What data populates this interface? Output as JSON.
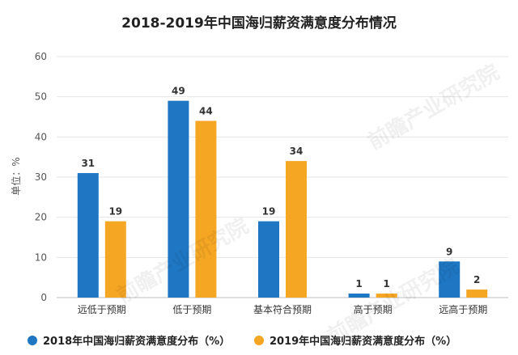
{
  "chart_data": {
    "type": "bar",
    "title": "2018-2019年中国海归薪资满意度分布情况",
    "ylabel": "单位：%",
    "xlabel": "",
    "ylim": [
      0,
      60
    ],
    "yticks": [
      0,
      10,
      20,
      30,
      40,
      50,
      60
    ],
    "categories": [
      "远低于预期",
      "低于预期",
      "基本符合预期",
      "高于预期",
      "远高于预期"
    ],
    "series": [
      {
        "name": "2018年中国海归薪资满意度分布（%）",
        "color": "#1f77c4",
        "values": [
          31,
          49,
          19,
          1,
          9
        ]
      },
      {
        "name": "2019年中国海归薪资满意度分布（%）",
        "color": "#f5a623",
        "values": [
          19,
          44,
          34,
          1,
          2
        ]
      }
    ],
    "grid": true,
    "legend_position": "bottom"
  },
  "watermark": {
    "text": "前瞻产业研究院"
  }
}
